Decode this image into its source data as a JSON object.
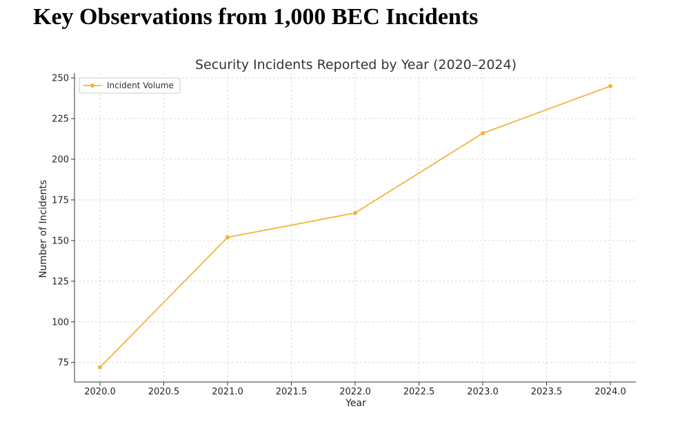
{
  "page": {
    "heading": "Key Observations from 1,000 BEC Incidents"
  },
  "chart_data": {
    "type": "line",
    "title": "Security Incidents Reported by Year (2020–2024)",
    "xlabel": "Year",
    "ylabel": "Number of Incidents",
    "x": [
      2020,
      2021,
      2022,
      2023,
      2024
    ],
    "series": [
      {
        "name": "Incident Volume",
        "values": [
          72,
          152,
          167,
          216,
          245
        ],
        "color": "#f0b43c"
      }
    ],
    "xlim": [
      2019.8,
      2024.2
    ],
    "ylim": [
      63,
      253
    ],
    "xticks": [
      "2020.0",
      "2020.5",
      "2021.0",
      "2021.5",
      "2022.0",
      "2022.5",
      "2023.0",
      "2023.5",
      "2024.0"
    ],
    "yticks": [
      "75",
      "100",
      "125",
      "150",
      "175",
      "200",
      "225",
      "250"
    ],
    "grid": true,
    "legend_position": "top-left",
    "marker": "circle"
  }
}
